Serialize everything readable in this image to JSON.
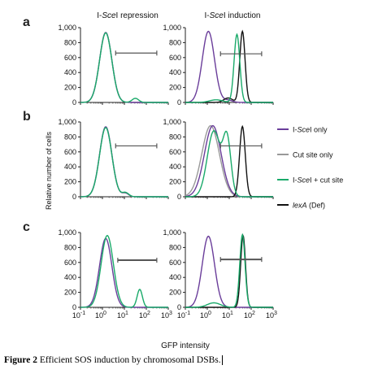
{
  "chart_data": {
    "type": "line",
    "xlabel": "GFP intensity",
    "ylabel": "Relative number of cells",
    "x_scale": "log",
    "x_ticks": [
      "10^-1",
      "10^0",
      "10^1",
      "10^2",
      "10^3"
    ],
    "y_ticks": [
      "0",
      "200",
      "400",
      "600",
      "800",
      "1,000"
    ],
    "ylim": [
      0,
      1000
    ],
    "xlim_log10": [
      -1,
      3
    ],
    "column_titles": [
      {
        "pre": "I-",
        "ital": "Sce",
        "post": "I repression"
      },
      {
        "pre": "I-",
        "ital": "Sce",
        "post": "I induction"
      }
    ],
    "row_labels": [
      "a",
      "b",
      "c"
    ],
    "legend": [
      {
        "pre": "I-",
        "ital": "Sce",
        "post": "I only",
        "color": "#6a3d9a"
      },
      {
        "pre": "",
        "ital": "",
        "post": "Cut site only",
        "color": "#999999"
      },
      {
        "pre": "I-",
        "ital": "Sce",
        "post": "I + cut site",
        "color": "#1aaa6a"
      },
      {
        "pre": "",
        "ital": "lexA",
        "post": " (Def)",
        "color": "#111111"
      }
    ],
    "panels": [
      {
        "row": 0,
        "col": 0,
        "gate": [
          4,
          300
        ],
        "gate_y": 660,
        "series": [
          {
            "key": "iscei_only",
            "peaks": [
              [
                0.15,
                0.28,
                935
              ]
            ]
          },
          {
            "key": "cut_site_only",
            "peaks": [
              [
                0.15,
                0.28,
                935
              ]
            ]
          },
          {
            "key": "iscei_cut",
            "peaks": [
              [
                0.15,
                0.28,
                930
              ],
              [
                1.5,
                0.15,
                55
              ]
            ]
          }
        ]
      },
      {
        "row": 0,
        "col": 1,
        "gate": [
          4,
          300
        ],
        "gate_y": 650,
        "series": [
          {
            "key": "iscei_only",
            "peaks": [
              [
                0.05,
                0.28,
                950
              ],
              [
                0.95,
                0.2,
                30
              ]
            ]
          },
          {
            "key": "iscei_cut",
            "peaks": [
              [
                1.35,
                0.13,
                910
              ],
              [
                0.4,
                0.3,
                35
              ]
            ]
          },
          {
            "key": "lexA_def",
            "peaks": [
              [
                1.6,
                0.12,
                950
              ],
              [
                0.95,
                0.2,
                60
              ]
            ]
          }
        ]
      },
      {
        "row": 1,
        "col": 0,
        "gate": [
          4,
          300
        ],
        "gate_y": 680,
        "series": [
          {
            "key": "iscei_only",
            "peaks": [
              [
                0.15,
                0.28,
                935
              ],
              [
                1.05,
                0.15,
                50
              ]
            ]
          },
          {
            "key": "cut_site_only",
            "peaks": [
              [
                0.15,
                0.28,
                935
              ],
              [
                1.05,
                0.15,
                45
              ]
            ]
          },
          {
            "key": "iscei_cut",
            "peaks": [
              [
                0.15,
                0.28,
                925
              ],
              [
                1.05,
                0.15,
                55
              ]
            ]
          }
        ]
      },
      {
        "row": 1,
        "col": 1,
        "gate": [
          4,
          300
        ],
        "gate_y": 680,
        "series": [
          {
            "key": "iscei_only",
            "peaks": [
              [
                0.25,
                0.38,
                950
              ]
            ]
          },
          {
            "key": "cut_site_only",
            "peaks": [
              [
                0.15,
                0.4,
                950
              ]
            ]
          },
          {
            "key": "iscei_cut",
            "peaks": [
              [
                0.3,
                0.3,
                880
              ],
              [
                0.9,
                0.18,
                740
              ]
            ]
          },
          {
            "key": "lexA_def",
            "peaks": [
              [
                1.6,
                0.13,
                940
              ]
            ]
          }
        ]
      },
      {
        "row": 2,
        "col": 0,
        "gate": [
          5,
          300
        ],
        "gate_y": 630,
        "series": [
          {
            "key": "iscei_only",
            "peaks": [
              [
                0.15,
                0.28,
                920
              ]
            ]
          },
          {
            "key": "iscei_cut",
            "peaks": [
              [
                0.22,
                0.28,
                960
              ],
              [
                1.7,
                0.12,
                240
              ]
            ]
          }
        ]
      },
      {
        "row": 2,
        "col": 1,
        "gate": [
          4,
          300
        ],
        "gate_y": 640,
        "series": [
          {
            "key": "iscei_only",
            "peaks": [
              [
                0.05,
                0.28,
                950
              ]
            ]
          },
          {
            "key": "iscei_cut",
            "peaks": [
              [
                1.6,
                0.12,
                970
              ],
              [
                0.3,
                0.3,
                60
              ]
            ]
          },
          {
            "key": "lexA_def",
            "peaks": [
              [
                1.63,
                0.11,
                960
              ]
            ]
          }
        ]
      }
    ]
  },
  "series_colors": {
    "iscei_only": "#6a3d9a",
    "cut_site_only": "#999999",
    "iscei_cut": "#1aaa6a",
    "lexA_def": "#111111"
  },
  "caption": {
    "label": "Figure 2",
    "text": " Efficient SOS induction by chromosomal DSBs."
  }
}
